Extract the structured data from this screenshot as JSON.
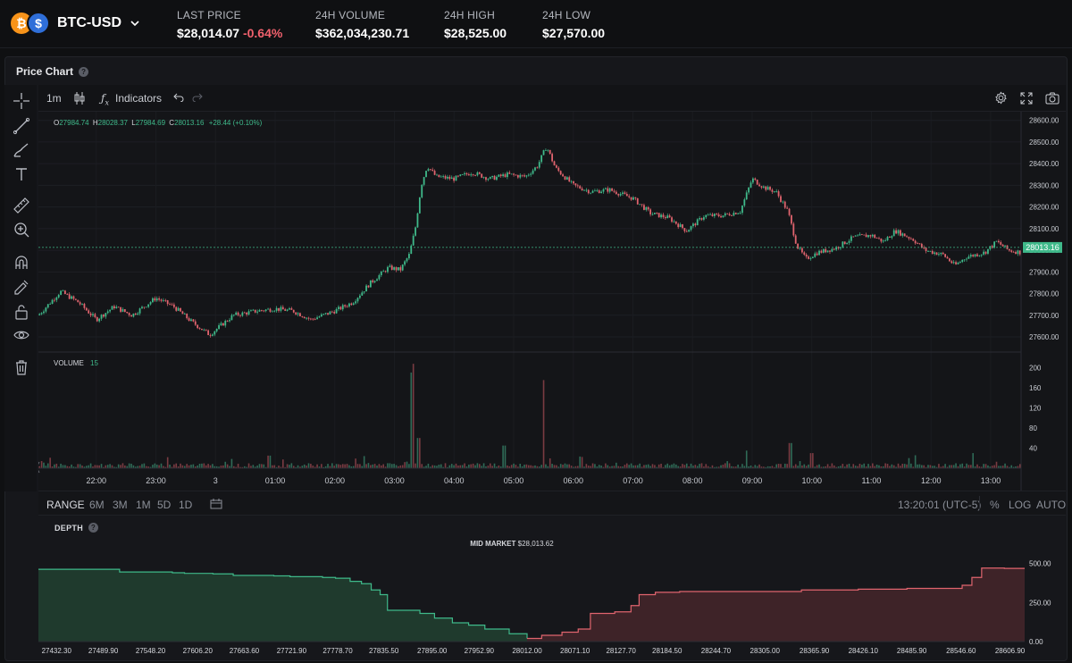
{
  "header": {
    "pair": "BTC-USD",
    "coin_icon": "bitcoin-icon",
    "quote_icon": "dollar-icon",
    "stats": [
      {
        "label": "LAST PRICE",
        "value": "$28,014.07",
        "change": "-0.64%"
      },
      {
        "label": "24H VOLUME",
        "value": "$362,034,230.71"
      },
      {
        "label": "24H HIGH",
        "value": "$28,525.00"
      },
      {
        "label": "24H LOW",
        "value": "$27,570.00"
      }
    ]
  },
  "panel": {
    "title": "Price Chart"
  },
  "toolbar": {
    "interval": "1m",
    "indicators": "Indicators"
  },
  "colors": {
    "up": "#3fb98a",
    "down": "#e0646e",
    "accent": "#3fb98a"
  },
  "chart_data": [
    {
      "type": "candlestick",
      "title": "",
      "ohlc_legend": {
        "O": "27984.74",
        "H": "28028.37",
        "L": "27984.69",
        "C": "28013.16",
        "change": "+28.44 (+0.10%)"
      },
      "last_price_label": "28013.16",
      "last_price": 28013.16,
      "ylim": [
        27530,
        28640
      ],
      "yticks": [
        "28600.00",
        "28500.00",
        "28400.00",
        "28300.00",
        "28200.00",
        "28100.00",
        "28000.00",
        "27900.00",
        "27800.00",
        "27700.00",
        "27600.00"
      ],
      "ytick_values": [
        28600,
        28500,
        28400,
        28300,
        28200,
        28100,
        28000,
        27900,
        27800,
        27700,
        27600
      ],
      "x_ticks": [
        "22:00",
        "23:00",
        "3",
        "01:00",
        "02:00",
        "03:00",
        "04:00",
        "05:00",
        "06:00",
        "07:00",
        "08:00",
        "09:00",
        "10:00",
        "11:00",
        "12:00",
        "13:00"
      ],
      "x_hours": [
        0,
        1,
        2,
        3,
        4,
        5,
        6,
        7,
        8,
        9,
        10,
        11,
        12,
        13,
        14,
        15
      ],
      "x_range_hours": [
        -0.97,
        15.51
      ],
      "price_path": [
        [
          -0.97,
          27700
        ],
        [
          -0.6,
          27810
        ],
        [
          -0.3,
          27760
        ],
        [
          0.0,
          27680
        ],
        [
          0.3,
          27740
        ],
        [
          0.6,
          27700
        ],
        [
          1.0,
          27780
        ],
        [
          1.3,
          27740
        ],
        [
          1.6,
          27670
        ],
        [
          1.9,
          27610
        ],
        [
          2.3,
          27700
        ],
        [
          2.7,
          27720
        ],
        [
          3.0,
          27730
        ],
        [
          3.3,
          27720
        ],
        [
          3.6,
          27680
        ],
        [
          4.0,
          27720
        ],
        [
          4.3,
          27760
        ],
        [
          4.6,
          27850
        ],
        [
          4.9,
          27920
        ],
        [
          5.1,
          27910
        ],
        [
          5.25,
          27980
        ],
        [
          5.35,
          28100
        ],
        [
          5.45,
          28300
        ],
        [
          5.55,
          28390
        ],
        [
          5.7,
          28340
        ],
        [
          6.0,
          28330
        ],
        [
          6.3,
          28360
        ],
        [
          6.6,
          28330
        ],
        [
          6.9,
          28350
        ],
        [
          7.2,
          28340
        ],
        [
          7.4,
          28390
        ],
        [
          7.55,
          28480
        ],
        [
          7.7,
          28380
        ],
        [
          8.0,
          28300
        ],
        [
          8.3,
          28270
        ],
        [
          8.6,
          28280
        ],
        [
          9.0,
          28240
        ],
        [
          9.3,
          28170
        ],
        [
          9.6,
          28150
        ],
        [
          9.9,
          28090
        ],
        [
          10.2,
          28160
        ],
        [
          10.5,
          28160
        ],
        [
          10.8,
          28180
        ],
        [
          11.0,
          28330
        ],
        [
          11.2,
          28290
        ],
        [
          11.4,
          28270
        ],
        [
          11.6,
          28180
        ],
        [
          11.75,
          28020
        ],
        [
          11.9,
          27960
        ],
        [
          12.1,
          27990
        ],
        [
          12.4,
          28010
        ],
        [
          12.7,
          28060
        ],
        [
          13.0,
          28070
        ],
        [
          13.2,
          28040
        ],
        [
          13.4,
          28090
        ],
        [
          13.7,
          28050
        ],
        [
          13.9,
          28000
        ],
        [
          14.2,
          27980
        ],
        [
          14.4,
          27930
        ],
        [
          14.6,
          27970
        ],
        [
          14.9,
          27990
        ],
        [
          15.1,
          28040
        ],
        [
          15.3,
          28000
        ],
        [
          15.51,
          27990
        ]
      ],
      "volume": {
        "label": "VOLUME",
        "value": "15",
        "ylim": [
          0,
          220
        ],
        "yticks": [
          "200",
          "160",
          "120",
          "80",
          "40"
        ],
        "ytick_values": [
          200,
          160,
          120,
          80,
          40
        ],
        "spikes": [
          [
            5.29,
            190
          ],
          [
            7.5,
            175
          ],
          [
            5.32,
            120
          ],
          [
            5.4,
            60
          ],
          [
            6.85,
            45
          ],
          [
            11.65,
            50
          ],
          [
            12.0,
            30
          ],
          [
            2.9,
            25
          ],
          [
            14.7,
            30
          ],
          [
            10.9,
            35
          ]
        ]
      }
    },
    {
      "type": "area",
      "title": "DEPTH",
      "mid_market_label": "MID MARKET",
      "mid_market_value": "$28,013.62",
      "xlim": [
        27410,
        28625
      ],
      "ylim": [
        0,
        560
      ],
      "yticks": [
        "500.00",
        "250.00",
        "0.00"
      ],
      "ytick_values": [
        500,
        250,
        0
      ],
      "xticks": [
        "27432.30",
        "27489.90",
        "27548.20",
        "27606.20",
        "27663.60",
        "27721.90",
        "27778.70",
        "27835.50",
        "27895.00",
        "27952.90",
        "28012.00",
        "28071.10",
        "28127.70",
        "28184.50",
        "28244.70",
        "28305.00",
        "28365.90",
        "28426.10",
        "28485.90",
        "28546.60",
        "28606.90"
      ],
      "xtick_values": [
        27432.3,
        27489.9,
        27548.2,
        27606.2,
        27663.6,
        27721.9,
        27778.7,
        27835.5,
        27895,
        27952.9,
        28012,
        28071.1,
        28127.7,
        28184.5,
        28244.7,
        28305,
        28365.9,
        28426.1,
        28485.9,
        28546.6,
        28606.9
      ],
      "bids": [
        [
          27410,
          462
        ],
        [
          27510,
          462
        ],
        [
          27510,
          445
        ],
        [
          27575,
          440
        ],
        [
          27590,
          436
        ],
        [
          27625,
          433
        ],
        [
          27650,
          423
        ],
        [
          27700,
          420
        ],
        [
          27720,
          415
        ],
        [
          27760,
          410
        ],
        [
          27776,
          405
        ],
        [
          27794,
          385
        ],
        [
          27808,
          370
        ],
        [
          27820,
          330
        ],
        [
          27831,
          300
        ],
        [
          27840,
          200
        ],
        [
          27880,
          180
        ],
        [
          27898,
          150
        ],
        [
          27920,
          120
        ],
        [
          27940,
          105
        ],
        [
          27960,
          80
        ],
        [
          27990,
          50
        ],
        [
          28012,
          20
        ]
      ],
      "asks": [
        [
          28012,
          20
        ],
        [
          28030,
          40
        ],
        [
          28055,
          60
        ],
        [
          28075,
          80
        ],
        [
          28090,
          180
        ],
        [
          28120,
          190
        ],
        [
          28140,
          230
        ],
        [
          28150,
          300
        ],
        [
          28170,
          315
        ],
        [
          28200,
          320
        ],
        [
          28260,
          320
        ],
        [
          28350,
          330
        ],
        [
          28420,
          335
        ],
        [
          28480,
          340
        ],
        [
          28548,
          360
        ],
        [
          28560,
          410
        ],
        [
          28572,
          470
        ],
        [
          28600,
          468
        ],
        [
          28625,
          468
        ]
      ]
    }
  ],
  "range_bar": {
    "range": "RANGE",
    "options": [
      "6M",
      "3M",
      "1M",
      "5D",
      "1D"
    ],
    "time": "13:20:01 (UTC-5)",
    "pct": "%",
    "log": "LOG",
    "auto": "AUTO"
  }
}
